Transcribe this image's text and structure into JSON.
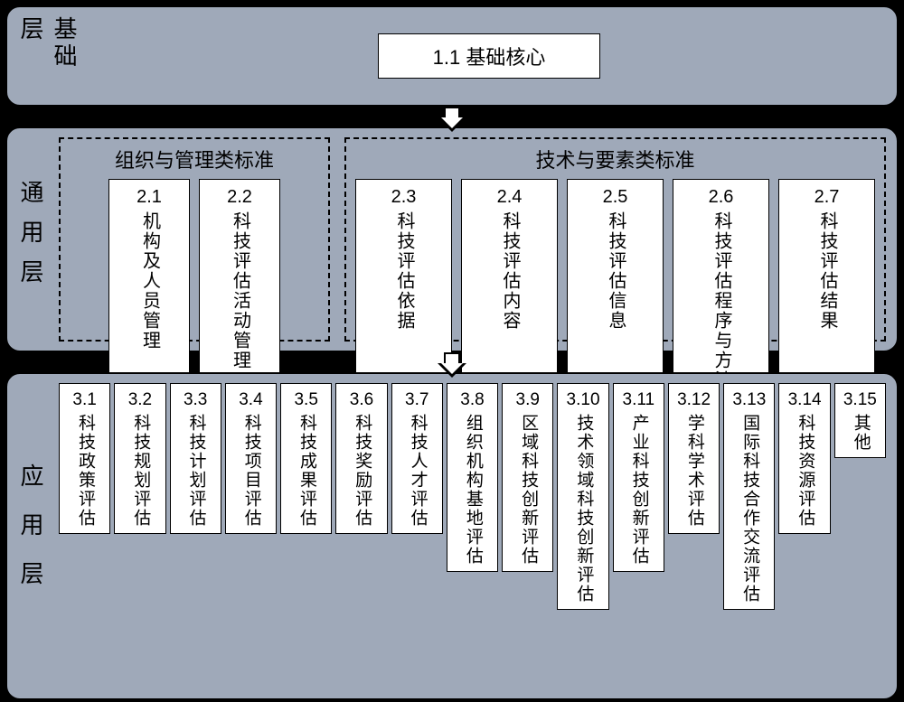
{
  "type": "layered-diagram",
  "background_color": "#000000",
  "layer_background": "#9fa9b9",
  "box_background": "#ffffff",
  "border_color": "#000000",
  "text_color": "#000000",
  "border_radius": 16,
  "font_family": "Microsoft YaHei",
  "layer1": {
    "label": "基础层",
    "core": "1.1  基础核心"
  },
  "layer2": {
    "label": "通用层",
    "groupA": {
      "title": "组织与管理类标准",
      "items": [
        {
          "num": "2.1",
          "text": "机构及人员管理"
        },
        {
          "num": "2.2",
          "text": "科技评估活动管理"
        }
      ]
    },
    "groupB": {
      "title": "技术与要素类标准",
      "items": [
        {
          "num": "2.3",
          "text": "科技评估依据"
        },
        {
          "num": "2.4",
          "text": "科技评估内容"
        },
        {
          "num": "2.5",
          "text": "科技评估信息"
        },
        {
          "num": "2.6",
          "text": "科技评估程序与方法"
        },
        {
          "num": "2.7",
          "text": "科技评估结果"
        }
      ]
    }
  },
  "layer3": {
    "label": "应用层",
    "items": [
      {
        "num": "3.1",
        "text": "科技政策评估"
      },
      {
        "num": "3.2",
        "text": "科技规划评估"
      },
      {
        "num": "3.3",
        "text": "科技计划评估"
      },
      {
        "num": "3.4",
        "text": "科技项目评估"
      },
      {
        "num": "3.5",
        "text": "科技成果评估"
      },
      {
        "num": "3.6",
        "text": "科技奖励评估"
      },
      {
        "num": "3.7",
        "text": "科技人才评估"
      },
      {
        "num": "3.8",
        "text": "组织机构基地评估"
      },
      {
        "num": "3.9",
        "text": "区域科技创新评估"
      },
      {
        "num": "3.10",
        "text": "技术领域科技创新评估"
      },
      {
        "num": "3.11",
        "text": "产业科技创新评估"
      },
      {
        "num": "3.12",
        "text": "学科学术评估"
      },
      {
        "num": "3.13",
        "text": "国际科技合作交流评估"
      },
      {
        "num": "3.14",
        "text": "科技资源评估"
      },
      {
        "num": "3.15",
        "text": "其他"
      }
    ]
  }
}
